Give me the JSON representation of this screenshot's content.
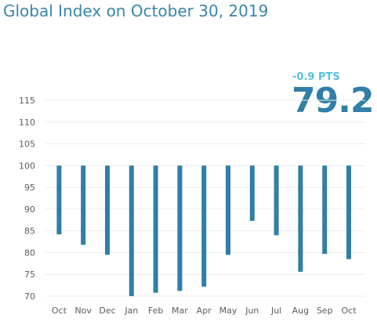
{
  "title": "Global Index on October 30, 2019",
  "change": "-0.9 PTS",
  "current_value": "79.2",
  "colors": {
    "bar": "#2f7fa7",
    "title": "#3a86a8",
    "change": "#56bfe3",
    "grid": "#ececec"
  },
  "chart_data": {
    "type": "bar",
    "categories": [
      "Oct",
      "Nov",
      "Dec",
      "Jan",
      "Feb",
      "Mar",
      "Apr",
      "May",
      "Jun",
      "Jul",
      "Aug",
      "Sep",
      "Oct"
    ],
    "values": [
      84.2,
      81.8,
      79.5,
      70,
      70.8,
      71.2,
      72.2,
      79.5,
      87.3,
      84,
      75.6,
      79.7,
      78.5
    ],
    "baseline": 100,
    "yticks": [
      70,
      75,
      80,
      85,
      90,
      95,
      100,
      105,
      110,
      115
    ],
    "ylim": [
      69,
      117
    ],
    "grid": true,
    "title": "",
    "xlabel": "",
    "ylabel": ""
  }
}
